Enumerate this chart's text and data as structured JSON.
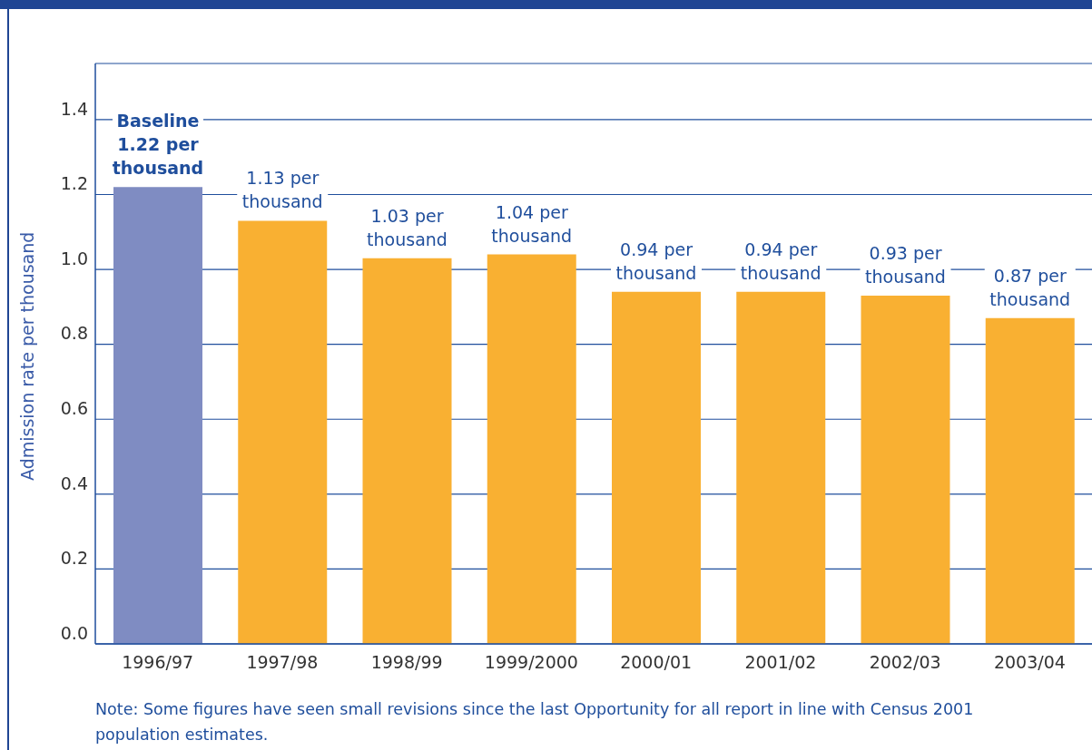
{
  "chart_data": {
    "type": "bar",
    "ylabel": "Admission rate per thousand",
    "categories": [
      "1996/97",
      "1997/98",
      "1998/99",
      "1999/2000",
      "2000/01",
      "2001/02",
      "2002/03",
      "2003/04"
    ],
    "values": [
      1.22,
      1.13,
      1.03,
      1.04,
      0.94,
      0.94,
      0.93,
      0.87
    ],
    "colors": [
      "#7f8cc2",
      "#f9b032",
      "#f9b032",
      "#f9b032",
      "#f9b032",
      "#f9b032",
      "#f9b032",
      "#f9b032"
    ],
    "value_labels": [
      "Baseline 1.22 per thousand",
      "1.13 per thousand",
      "1.03 per thousand",
      "1.04 per thousand",
      "0.94 per thousand",
      "0.94 per thousand",
      "0.93 per thousand",
      "0.87 per thousand"
    ],
    "ylim": [
      0,
      1.55
    ],
    "yticks": [
      {
        "value": 0,
        "label": "0.0"
      },
      {
        "value": 0.2,
        "label": "0.2"
      },
      {
        "value": 0.4,
        "label": "0.4"
      },
      {
        "value": 0.6,
        "label": "0.6"
      },
      {
        "value": 0.8,
        "label": "0.8"
      },
      {
        "value": 1,
        "label": "1.0"
      },
      {
        "value": 1.2,
        "label": "1.2"
      },
      {
        "value": 1.4,
        "label": "1.4"
      }
    ],
    "grid": "y",
    "annotations": [
      "Note: Some figures have seen small revisions since the last Opportunity for all report in line with Census 2001 population estimates."
    ]
  }
}
